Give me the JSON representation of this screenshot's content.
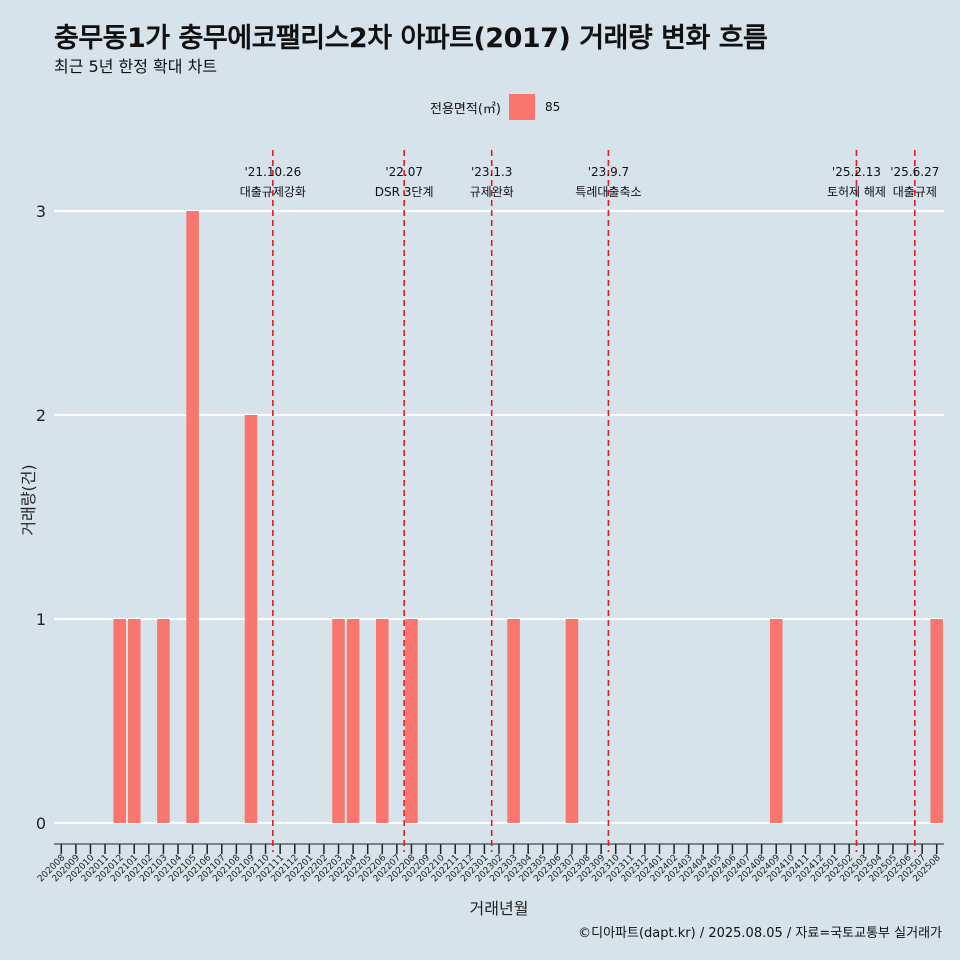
{
  "title": "충무동1가 충무에코팰리스2차 아파트(2017) 거래량 변화 흐름",
  "subtitle": "최근 5년 한정 확대 차트",
  "caption": "©디아파트(dapt.kr) / 2025.08.05 / 자료=국토교통부 실거래가",
  "legend": {
    "title": "전용면적(㎡)",
    "value": "85"
  },
  "colors": {
    "bar": "#f8766d",
    "background": "#d6e3ea",
    "grid": "#ffffff",
    "event_line": "#e31a1c"
  },
  "chart_data": {
    "type": "bar",
    "xlabel": "거래년월",
    "ylabel": "거래량(건)",
    "ylim": [
      0,
      3
    ],
    "yticks": [
      0,
      1,
      2,
      3
    ],
    "grid": "horizontal",
    "legend_position": "top",
    "categories": [
      "202008",
      "202009",
      "202010",
      "202011",
      "202012",
      "202101",
      "202102",
      "202103",
      "202104",
      "202105",
      "202106",
      "202107",
      "202108",
      "202109",
      "202110",
      "202111",
      "202112",
      "202201",
      "202202",
      "202203",
      "202204",
      "202205",
      "202206",
      "202207",
      "202208",
      "202209",
      "202210",
      "202211",
      "202212",
      "202301",
      "202302",
      "202303",
      "202304",
      "202305",
      "202306",
      "202307",
      "202308",
      "202309",
      "202310",
      "202311",
      "202312",
      "202401",
      "202402",
      "202403",
      "202404",
      "202405",
      "202406",
      "202407",
      "202408",
      "202409",
      "202410",
      "202411",
      "202412",
      "202501",
      "202502",
      "202503",
      "202504",
      "202505",
      "202506",
      "202507",
      "202508"
    ],
    "series": [
      {
        "name": "85",
        "values": [
          0,
          0,
          0,
          0,
          1,
          1,
          0,
          1,
          0,
          3,
          0,
          0,
          0,
          2,
          0,
          0,
          0,
          0,
          0,
          1,
          1,
          0,
          1,
          0,
          1,
          0,
          0,
          0,
          0,
          0,
          0,
          1,
          0,
          0,
          0,
          1,
          0,
          0,
          0,
          0,
          0,
          0,
          0,
          0,
          0,
          0,
          0,
          0,
          0,
          1,
          0,
          0,
          0,
          0,
          0,
          0,
          0,
          0,
          0,
          0,
          1
        ]
      }
    ],
    "annotations": [
      {
        "x": 14.5,
        "date": "'21.10.26",
        "label": "대출규제강화"
      },
      {
        "x": 23.5,
        "date": "'22.07",
        "label": "DSR 3단계"
      },
      {
        "x": 29.5,
        "date": "'23.1.3",
        "label": "규제완화"
      },
      {
        "x": 37.5,
        "date": "'23.9.7",
        "label": "특례대출축소"
      },
      {
        "x": 54.5,
        "date": "'25.2.13",
        "label": "토허제 해제"
      },
      {
        "x": 58.5,
        "date": "'25.6.27",
        "label": "대출규제"
      }
    ]
  }
}
